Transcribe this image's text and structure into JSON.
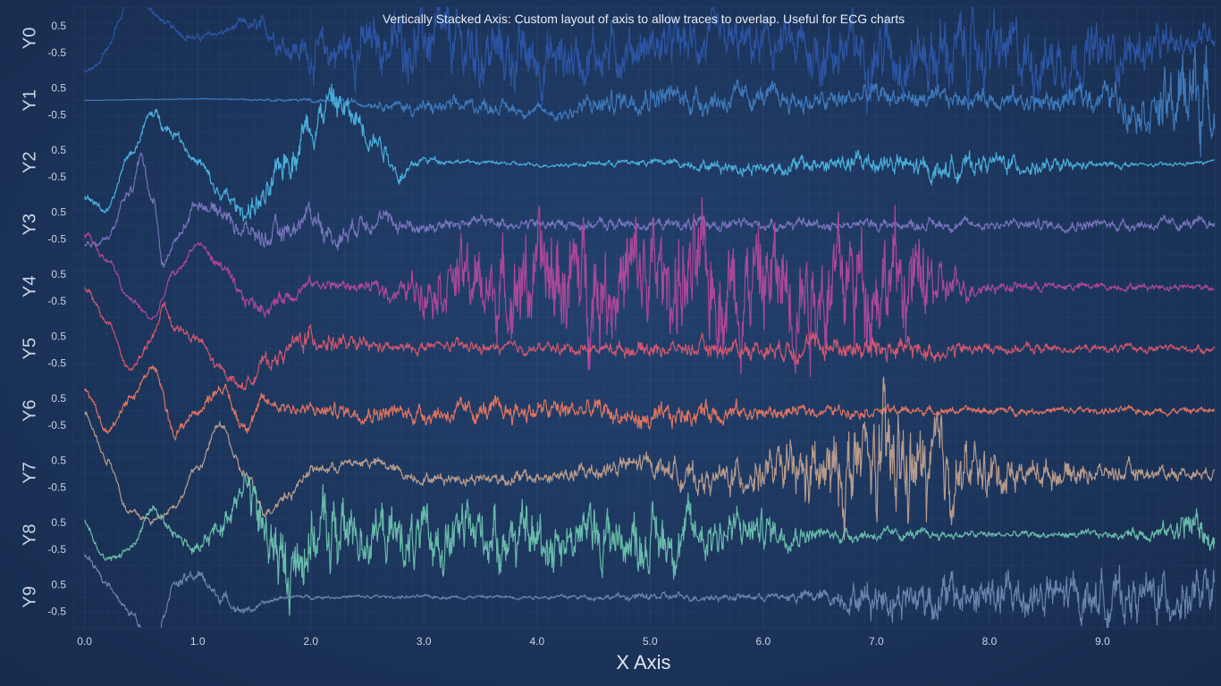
{
  "chart_data": {
    "type": "line",
    "title": "Vertically Stacked Axis: Custom layout of axis to allow traces to overlap. Useful for ECG charts",
    "xlabel": "X Axis",
    "xlim": [
      -0.1,
      10.0
    ],
    "x_ticks": [
      "0.0",
      "1.0",
      "2.0",
      "3.0",
      "4.0",
      "5.0",
      "6.0",
      "7.0",
      "8.0",
      "9.0"
    ],
    "y_tick_labels": [
      "0.5",
      "-0.5"
    ],
    "grid": true,
    "axes": [
      {
        "name": "Y0",
        "color": "#2c56a8"
      },
      {
        "name": "Y1",
        "color": "#3f7cc0"
      },
      {
        "name": "Y2",
        "color": "#4cb4e0"
      },
      {
        "name": "Y3",
        "color": "#7b76c0"
      },
      {
        "name": "Y4",
        "color": "#b3489a"
      },
      {
        "name": "Y5",
        "color": "#d9576e"
      },
      {
        "name": "Y6",
        "color": "#e9765e"
      },
      {
        "name": "Y7",
        "color": "#c0a08e"
      },
      {
        "name": "Y8",
        "color": "#6cc2ae"
      },
      {
        "name": "Y9",
        "color": "#6d88b0"
      }
    ],
    "series": [
      {
        "axis": "Y0",
        "x": [
          0,
          0.1,
          0.2,
          0.3,
          0.4,
          0.5,
          0.6,
          0.7,
          0.8,
          0.9,
          1.0,
          1.2,
          1.4,
          1.6,
          1.8,
          2.0,
          2.5,
          3.0,
          3.5,
          4.0,
          4.5,
          5.0,
          5.5,
          6.0,
          6.5,
          7.0,
          7.5,
          8.0,
          8.5,
          9.0,
          9.5,
          9.99
        ],
        "y": [
          -1.3,
          -1.1,
          -0.4,
          0.6,
          1.8,
          1.4,
          1.0,
          0.6,
          0.3,
          0.1,
          0.0,
          0.2,
          0.5,
          0.3,
          -0.3,
          -0.6,
          -0.3,
          -0.1,
          -0.5,
          -0.8,
          -0.6,
          -0.3,
          -0.2,
          -0.3,
          -0.5,
          -0.4,
          -0.6,
          -0.5,
          -0.8,
          -0.6,
          -0.4,
          0.2
        ],
        "amp": [
          0.1,
          0.1,
          0.1,
          0.1,
          0.1,
          0.1,
          0.1,
          0.1,
          0.1,
          0.1,
          0.1,
          0.1,
          0.15,
          0.25,
          0.35,
          0.5,
          0.7,
          0.8,
          0.9,
          0.8,
          0.7,
          0.6,
          0.6,
          0.6,
          0.8,
          0.9,
          1.0,
          0.9,
          0.8,
          0.7,
          0.5,
          0.3
        ]
      },
      {
        "axis": "Y1",
        "x": [
          0,
          1,
          2,
          2.5,
          3,
          3.5,
          4,
          4.2,
          4.5,
          5,
          5.5,
          6,
          6.5,
          7,
          7.5,
          8,
          8.5,
          9,
          9.3,
          9.6,
          9.8,
          9.99
        ],
        "y": [
          0,
          0.05,
          0,
          -0.1,
          -0.3,
          -0.2,
          -0.4,
          -0.5,
          -0.2,
          0.2,
          0.0,
          0.1,
          -0.1,
          0.2,
          0.0,
          0.1,
          -0.1,
          0.2,
          -0.2,
          -0.3,
          0.5,
          -0.2
        ],
        "amp": [
          0.01,
          0.01,
          0.05,
          0.1,
          0.2,
          0.2,
          0.15,
          0.2,
          0.3,
          0.35,
          0.35,
          0.3,
          0.3,
          0.3,
          0.25,
          0.25,
          0.3,
          0.4,
          0.5,
          0.9,
          1.4,
          0.8
        ]
      },
      {
        "axis": "Y2",
        "x": [
          0,
          0.2,
          0.4,
          0.6,
          0.8,
          1.0,
          1.2,
          1.4,
          1.6,
          1.8,
          2.0,
          2.2,
          2.4,
          2.6,
          2.8,
          3.0,
          3.5,
          4,
          5,
          6,
          6.5,
          7,
          7.5,
          8,
          8.5,
          9,
          9.5,
          9.99
        ],
        "y": [
          -1.3,
          -1.8,
          0.3,
          1.8,
          1.1,
          0.0,
          -1.2,
          -1.8,
          -1.4,
          0.2,
          1.5,
          2.3,
          1.6,
          0.8,
          -0.5,
          0.1,
          0.0,
          -0.1,
          0.0,
          -0.2,
          -0.1,
          0.0,
          -0.3,
          0.0,
          -0.2,
          -0.1,
          -0.1,
          0.0
        ],
        "amp": [
          0.1,
          0.1,
          0.1,
          0.15,
          0.15,
          0.15,
          0.2,
          0.3,
          0.4,
          0.5,
          0.5,
          0.5,
          0.4,
          0.3,
          0.2,
          0.1,
          0.05,
          0.05,
          0.1,
          0.2,
          0.25,
          0.3,
          0.3,
          0.25,
          0.2,
          0.1,
          0.05,
          0.05
        ]
      },
      {
        "axis": "Y3",
        "x": [
          0,
          0.2,
          0.4,
          0.5,
          0.6,
          0.7,
          0.8,
          1.0,
          1.2,
          1.4,
          1.6,
          1.8,
          2.0,
          2.2,
          2.5,
          3,
          3.5,
          4,
          5,
          6,
          7,
          8,
          9,
          9.99
        ],
        "y": [
          -0.8,
          -0.5,
          1.2,
          2.5,
          1.0,
          -1.5,
          -0.6,
          0.8,
          0.5,
          -0.2,
          -0.5,
          -0.2,
          0.4,
          -0.5,
          0.2,
          -0.1,
          0.1,
          0.0,
          0.0,
          0.0,
          0.0,
          0.0,
          0.0,
          0.0
        ],
        "amp": [
          0.1,
          0.1,
          0.15,
          0.15,
          0.15,
          0.15,
          0.15,
          0.15,
          0.2,
          0.25,
          0.3,
          0.3,
          0.3,
          0.3,
          0.25,
          0.2,
          0.15,
          0.15,
          0.15,
          0.15,
          0.15,
          0.15,
          0.15,
          0.15
        ]
      },
      {
        "axis": "Y4",
        "x": [
          0,
          0.2,
          0.4,
          0.6,
          0.8,
          1.0,
          1.2,
          1.4,
          1.6,
          1.8,
          2.0,
          2.4,
          2.8,
          3.0,
          3.3,
          3.6,
          4.0,
          4.5,
          5.0,
          5.5,
          6.0,
          6.5,
          7.0,
          7.4,
          7.6,
          8,
          9,
          9.99
        ],
        "y": [
          2.0,
          1.0,
          -0.5,
          -1.2,
          0.5,
          1.6,
          0.8,
          -0.5,
          -0.8,
          -0.3,
          0.1,
          0.0,
          -0.2,
          0.1,
          0.4,
          -0.2,
          0.3,
          0.2,
          0.3,
          0.1,
          0.2,
          0.0,
          0.4,
          0.1,
          -0.1,
          0.0,
          0.0,
          0.0
        ],
        "amp": [
          0.1,
          0.1,
          0.1,
          0.1,
          0.1,
          0.1,
          0.15,
          0.2,
          0.2,
          0.2,
          0.15,
          0.15,
          0.3,
          0.6,
          0.9,
          1.0,
          1.4,
          1.5,
          1.5,
          1.6,
          1.6,
          1.5,
          1.6,
          1.2,
          0.5,
          0.15,
          0.1,
          0.1
        ]
      },
      {
        "axis": "Y5",
        "x": [
          0,
          0.2,
          0.4,
          0.6,
          0.7,
          0.8,
          1.0,
          1.2,
          1.4,
          1.6,
          2.0,
          2.4,
          2.8,
          3.2,
          3.6,
          4,
          5,
          6,
          6.5,
          7,
          7.5,
          8,
          9,
          9.99
        ],
        "y": [
          2.2,
          1.0,
          -0.8,
          0.3,
          1.6,
          0.8,
          0.3,
          -0.8,
          -1.4,
          -0.5,
          0.4,
          0.1,
          0.0,
          0.1,
          0.0,
          0.0,
          0.0,
          0.0,
          0.1,
          0.0,
          -0.1,
          0.0,
          0.0,
          0.0
        ],
        "amp": [
          0.1,
          0.1,
          0.1,
          0.15,
          0.15,
          0.15,
          0.15,
          0.15,
          0.15,
          0.2,
          0.3,
          0.2,
          0.15,
          0.15,
          0.15,
          0.15,
          0.2,
          0.25,
          0.3,
          0.35,
          0.25,
          0.15,
          0.1,
          0.1
        ]
      },
      {
        "axis": "Y6",
        "x": [
          0,
          0.2,
          0.4,
          0.6,
          0.8,
          1.0,
          1.2,
          1.4,
          1.6,
          2,
          3,
          4,
          4.5,
          5,
          5.5,
          6,
          6.5,
          7,
          7.5,
          8,
          9,
          9.99
        ],
        "y": [
          0.8,
          -0.8,
          0.5,
          1.6,
          -0.8,
          0.0,
          0.9,
          -0.5,
          0.3,
          0.0,
          -0.1,
          0.0,
          0.0,
          -0.4,
          0.0,
          -0.1,
          0.0,
          0.0,
          0.0,
          0.0,
          0.0,
          0.0
        ],
        "amp": [
          0.1,
          0.1,
          0.15,
          0.15,
          0.15,
          0.15,
          0.15,
          0.2,
          0.2,
          0.2,
          0.25,
          0.3,
          0.3,
          0.3,
          0.3,
          0.2,
          0.15,
          0.15,
          0.1,
          0.1,
          0.1,
          0.1
        ]
      },
      {
        "axis": "Y7",
        "x": [
          0,
          0.2,
          0.4,
          0.6,
          0.8,
          1.0,
          1.2,
          1.4,
          1.6,
          1.8,
          2.0,
          2.5,
          3.0,
          4,
          5,
          5.5,
          6,
          6.5,
          7,
          7.5,
          8,
          8.5,
          9,
          9.99
        ],
        "y": [
          2.3,
          0.5,
          -1.5,
          -1.8,
          -1.2,
          0.2,
          1.8,
          0.0,
          -1.4,
          -0.8,
          0.1,
          0.4,
          -0.2,
          -0.2,
          0.3,
          -0.3,
          0.0,
          -0.2,
          0.3,
          0.0,
          0.0,
          0.0,
          0.0,
          0.0
        ],
        "amp": [
          0.1,
          0.1,
          0.1,
          0.1,
          0.1,
          0.1,
          0.1,
          0.15,
          0.15,
          0.15,
          0.15,
          0.15,
          0.15,
          0.2,
          0.3,
          0.35,
          0.5,
          1.0,
          1.5,
          1.2,
          0.6,
          0.35,
          0.25,
          0.15
        ]
      },
      {
        "axis": "Y8",
        "x": [
          0,
          0.2,
          0.4,
          0.6,
          0.8,
          1.0,
          1.2,
          1.4,
          1.6,
          1.8,
          2.0,
          2.5,
          3,
          3.5,
          4,
          4.5,
          5,
          5.5,
          6,
          6.5,
          7,
          8,
          9,
          9.5,
          9.8,
          9.99
        ],
        "y": [
          0.5,
          -1.0,
          -0.5,
          1.0,
          0.0,
          -0.6,
          0.3,
          2.0,
          0.0,
          -1.5,
          0.0,
          0.1,
          -0.3,
          0.1,
          -0.2,
          0.0,
          -0.2,
          0.1,
          0.2,
          0.0,
          0.0,
          0.0,
          0.0,
          0.1,
          0.4,
          -0.3
        ],
        "amp": [
          0.1,
          0.1,
          0.1,
          0.15,
          0.15,
          0.2,
          0.3,
          0.5,
          0.9,
          1.1,
          1.0,
          0.8,
          0.7,
          0.8,
          0.8,
          0.8,
          0.8,
          0.7,
          0.5,
          0.2,
          0.15,
          0.1,
          0.1,
          0.2,
          0.5,
          0.3
        ]
      },
      {
        "axis": "Y9",
        "x": [
          0,
          0.2,
          0.4,
          0.6,
          0.8,
          1.0,
          1.2,
          1.4,
          1.8,
          2,
          3,
          4,
          5,
          6,
          6.5,
          7,
          7.5,
          8,
          8.5,
          9,
          9.5,
          9.99
        ],
        "y": [
          1.5,
          0.5,
          -0.6,
          -1.8,
          0.5,
          0.8,
          0.0,
          -0.5,
          0.0,
          0.0,
          0.0,
          0.0,
          0.0,
          0.0,
          0.0,
          0.0,
          0.0,
          0.0,
          0.0,
          0.0,
          0.0,
          0.0
        ],
        "amp": [
          0.1,
          0.1,
          0.1,
          0.15,
          0.15,
          0.15,
          0.15,
          0.1,
          0.05,
          0.05,
          0.05,
          0.05,
          0.1,
          0.1,
          0.2,
          0.5,
          0.6,
          0.6,
          0.6,
          0.6,
          0.6,
          0.6
        ]
      }
    ]
  }
}
